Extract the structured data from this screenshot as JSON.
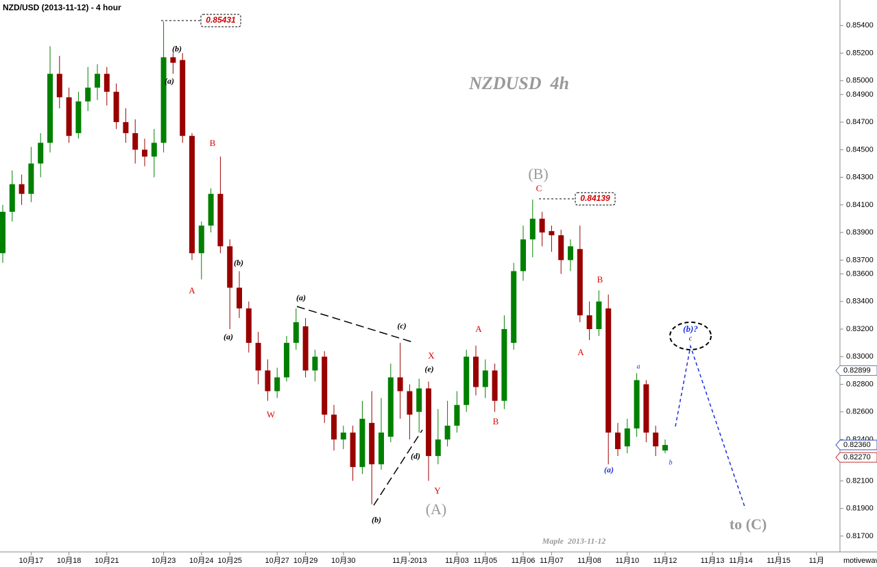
{
  "chart_data": {
    "type": "candlestick",
    "title": "NZD/USD (2013-11-12) - 4 hour",
    "categories": [
      null,
      null,
      null,
      "10月17",
      null,
      null,
      null,
      "10月18",
      null,
      null,
      null,
      "10月21",
      null,
      null,
      null,
      null,
      null,
      "10月23",
      null,
      null,
      null,
      "10月24",
      null,
      null,
      "10月25",
      null,
      null,
      null,
      null,
      "10月27",
      null,
      null,
      "10月29",
      null,
      null,
      null,
      "10月30",
      null,
      null,
      null,
      null,
      null,
      null,
      "11月-2013",
      null,
      null,
      null,
      null,
      "11月03",
      null,
      null,
      "11月05",
      null,
      null,
      null,
      "11月06",
      null,
      null,
      "11月07",
      null,
      null,
      null,
      "11月08",
      null,
      null,
      null,
      "11月10",
      null,
      null,
      null,
      "11月12",
      null,
      null,
      null,
      null,
      "11月13",
      null,
      null,
      "11月14",
      null,
      null,
      null,
      "11月15",
      null,
      null,
      null,
      "11月",
      null,
      null
    ],
    "open": [
      0.8375,
      0.8405,
      0.8425,
      0.8418,
      0.844,
      0.8455,
      0.8505,
      0.8488,
      0.8462,
      0.8485,
      0.8495,
      0.8505,
      0.8492,
      0.847,
      0.8462,
      0.845,
      0.8445,
      0.8455,
      0.8517,
      0.8515,
      0.846,
      0.8375,
      0.8395,
      0.8418,
      0.838,
      0.835,
      0.8335,
      0.831,
      0.829,
      0.8275,
      0.8285,
      0.831,
      0.8322,
      0.829,
      0.83,
      0.8258,
      0.824,
      0.8245,
      0.822,
      0.8252,
      0.8222,
      0.8242,
      0.8285,
      0.8275,
      0.826,
      0.8277,
      0.8228,
      0.824,
      0.825,
      0.8265,
      0.83,
      0.8278,
      0.829,
      0.8268,
      0.831,
      0.8362,
      0.8385,
      0.84,
      0.8391,
      0.8388,
      0.837,
      0.8378,
      0.833,
      0.832,
      0.8335,
      0.8245,
      0.8235,
      0.8248,
      0.828,
      0.8245,
      0.8232,
      null,
      null,
      null,
      null,
      null,
      null,
      null,
      null,
      null,
      null,
      null,
      null,
      null,
      null,
      null,
      null,
      null,
      null
    ],
    "high": [
      0.841,
      0.8435,
      0.8432,
      0.8452,
      0.8462,
      0.8525,
      0.8518,
      0.8495,
      0.8492,
      0.851,
      0.8512,
      0.851,
      0.8498,
      0.848,
      0.8472,
      0.8458,
      0.8465,
      0.8543,
      0.852,
      0.852,
      0.8462,
      0.8398,
      0.8422,
      0.8445,
      0.8385,
      0.8362,
      0.834,
      0.8318,
      0.8298,
      0.8292,
      0.8315,
      0.8335,
      0.8328,
      0.8305,
      0.8304,
      0.8265,
      0.825,
      0.825,
      0.8268,
      0.8275,
      0.827,
      0.8295,
      0.831,
      0.828,
      0.8284,
      0.8282,
      0.8262,
      0.8268,
      0.8275,
      0.8305,
      0.8308,
      0.8298,
      0.8295,
      0.833,
      0.8368,
      0.8395,
      0.84139,
      0.8405,
      0.8395,
      0.8392,
      0.8385,
      0.8395,
      0.834,
      0.8348,
      0.8345,
      0.8252,
      0.8255,
      0.8288,
      0.8283,
      0.825,
      0.824,
      null,
      null,
      null,
      null,
      null,
      null,
      null,
      null,
      null,
      null,
      null,
      null,
      null,
      null,
      null,
      null,
      null,
      null
    ],
    "low": [
      0.8368,
      0.8398,
      0.841,
      0.8412,
      0.843,
      0.8448,
      0.848,
      0.8455,
      0.8458,
      0.8478,
      0.8486,
      0.8482,
      0.8465,
      0.8455,
      0.844,
      0.8438,
      0.843,
      0.8448,
      0.8505,
      0.8455,
      0.837,
      0.8356,
      0.839,
      0.8375,
      0.832,
      0.8328,
      0.8303,
      0.828,
      0.8268,
      0.827,
      0.8282,
      0.8305,
      0.8285,
      0.8282,
      0.8252,
      0.8232,
      0.8233,
      0.821,
      0.8215,
      0.8193,
      0.8218,
      0.8238,
      0.8255,
      0.824,
      0.8245,
      0.821,
      0.8222,
      0.8235,
      0.8245,
      0.826,
      0.8272,
      0.827,
      0.826,
      0.8262,
      0.8305,
      0.8355,
      0.8372,
      0.838,
      0.8376,
      0.836,
      0.8362,
      0.8325,
      0.8312,
      0.8315,
      0.8222,
      0.8228,
      0.823,
      0.8242,
      0.8238,
      0.8228,
      0.823,
      null,
      null,
      null,
      null,
      null,
      null,
      null,
      null,
      null,
      null,
      null,
      null,
      null,
      null,
      null,
      null,
      null,
      null
    ],
    "close": [
      0.8405,
      0.8425,
      0.8418,
      0.844,
      0.8455,
      0.8505,
      0.8488,
      0.846,
      0.8485,
      0.8495,
      0.8505,
      0.8492,
      0.847,
      0.8462,
      0.845,
      0.8445,
      0.8455,
      0.8517,
      0.8513,
      0.846,
      0.8375,
      0.8395,
      0.8418,
      0.838,
      0.835,
      0.8335,
      0.831,
      0.829,
      0.8275,
      0.8285,
      0.831,
      0.8325,
      0.829,
      0.83,
      0.8258,
      0.824,
      0.8245,
      0.822,
      0.8255,
      0.8222,
      0.8245,
      0.8285,
      0.8275,
      0.8258,
      0.8277,
      0.8228,
      0.824,
      0.825,
      0.8265,
      0.83,
      0.8278,
      0.829,
      0.8268,
      0.832,
      0.8362,
      0.8385,
      0.84,
      0.839,
      0.8388,
      0.837,
      0.838,
      0.833,
      0.832,
      0.834,
      0.8245,
      0.8233,
      0.8248,
      0.8283,
      0.8245,
      0.8235,
      0.8236,
      null,
      null,
      null,
      null,
      null,
      null,
      null,
      null,
      null,
      null,
      null,
      null,
      null,
      null,
      null,
      null,
      null,
      null
    ],
    "up_color": "#008000",
    "down_color": "#990000",
    "ylim": [
      0.81585,
      0.85585
    ],
    "yticks": [
      {
        "value": 0.854,
        "label": "0.85400"
      },
      {
        "value": 0.852,
        "label": "0.85200"
      },
      {
        "value": 0.85,
        "label": "0.85000"
      },
      {
        "value": 0.849,
        "label": "0.84900"
      },
      {
        "value": 0.847,
        "label": "0.84700"
      },
      {
        "value": 0.845,
        "label": "0.84500"
      },
      {
        "value": 0.843,
        "label": "0.84300"
      },
      {
        "value": 0.841,
        "label": "0.84100"
      },
      {
        "value": 0.839,
        "label": "0.83900"
      },
      {
        "value": 0.837,
        "label": "0.83700"
      },
      {
        "value": 0.836,
        "label": "0.83600"
      },
      {
        "value": 0.834,
        "label": "0.83400"
      },
      {
        "value": 0.832,
        "label": "0.83200"
      },
      {
        "value": 0.83,
        "label": "0.83000"
      },
      {
        "value": 0.828,
        "label": "0.82800"
      },
      {
        "value": 0.826,
        "label": "0.82600"
      },
      {
        "value": 0.824,
        "label": "0.82400"
      },
      {
        "value": 0.821,
        "label": "0.82100"
      },
      {
        "value": 0.819,
        "label": "0.81900"
      },
      {
        "value": 0.817,
        "label": "0.81700"
      }
    ],
    "price_tags": [
      {
        "value": 0.82899,
        "label": "0.82899",
        "color": "#6a7fa8"
      },
      {
        "value": 0.8236,
        "label": "0.82360",
        "color": "#3050c0"
      },
      {
        "value": 0.8227,
        "label": "0.82270",
        "color": "#c03030"
      }
    ],
    "callouts": [
      "0.85431",
      "0.84139"
    ],
    "annotations": [
      "NZDUSD  4h",
      "(b)",
      "(a)",
      "B",
      "A",
      "(b)",
      "(a)",
      "W",
      "(a)",
      "(c)",
      "X",
      "(e)",
      "(d)",
      "(b)",
      "Y",
      "(A)",
      "A",
      "B",
      "(B)",
      "C",
      "B",
      "A",
      "(a)",
      "a",
      "b",
      "(b)?",
      "c",
      "to (C)",
      "Maple  2013-11-12"
    ],
    "watermark": "motivewave"
  }
}
